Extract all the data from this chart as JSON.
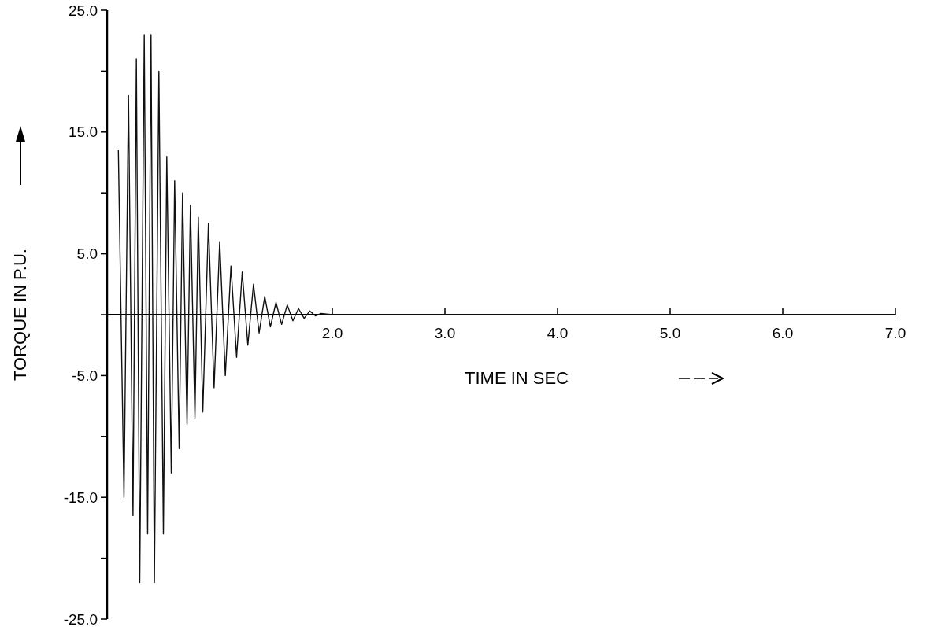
{
  "chart_data": {
    "type": "line",
    "xlabel": "TIME IN SEC",
    "ylabel": "TORQUE IN P.U.",
    "xlim": [
      0,
      7.0
    ],
    "ylim": [
      -25.0,
      25.0
    ],
    "xticks": [
      {
        "value": 2.0,
        "label": "2.0"
      },
      {
        "value": 3.0,
        "label": "3.0"
      },
      {
        "value": 4.0,
        "label": "4.0"
      },
      {
        "value": 5.0,
        "label": "5.0"
      },
      {
        "value": 6.0,
        "label": "6.0"
      },
      {
        "value": 7.0,
        "label": "7.0"
      }
    ],
    "yticks": [
      {
        "value": 25,
        "label": "25.0"
      },
      {
        "value": 20,
        "label": null
      },
      {
        "value": 15,
        "label": "15.0"
      },
      {
        "value": 10,
        "label": null
      },
      {
        "value": 5,
        "label": "5.0"
      },
      {
        "value": 0,
        "label": null
      },
      {
        "value": -5,
        "label": "-5.0"
      },
      {
        "value": -10,
        "label": null
      },
      {
        "value": -15,
        "label": "-15.0"
      },
      {
        "value": -20,
        "label": null
      },
      {
        "value": -25,
        "label": "-25.0"
      }
    ],
    "grid": false,
    "marker": "none",
    "line_style": "solid",
    "series": [
      {
        "color": "#111111",
        "x": [
          0.1,
          0.15,
          0.19,
          0.23,
          0.26,
          0.29,
          0.33,
          0.36,
          0.39,
          0.42,
          0.46,
          0.5,
          0.53,
          0.57,
          0.6,
          0.64,
          0.67,
          0.71,
          0.74,
          0.78,
          0.81,
          0.85,
          0.9,
          0.95,
          1.0,
          1.05,
          1.1,
          1.15,
          1.2,
          1.25,
          1.3,
          1.35,
          1.4,
          1.45,
          1.5,
          1.55,
          1.6,
          1.65,
          1.7,
          1.75,
          1.8,
          1.85,
          1.9,
          2.0,
          7.0
        ],
        "values": [
          13.5,
          -15,
          18,
          -16.5,
          21,
          -22,
          23,
          -18,
          23,
          -22,
          20,
          -18,
          13,
          -13,
          11,
          -11,
          10,
          -9,
          9,
          -8.5,
          8,
          -8,
          7.5,
          -6,
          6,
          -5,
          4,
          -3.5,
          3.5,
          -2.5,
          2.5,
          -1.5,
          1.5,
          -1,
          1,
          -0.8,
          0.8,
          -0.5,
          0.5,
          -0.3,
          0.3,
          -0.1,
          0.1,
          0,
          0
        ]
      }
    ]
  }
}
